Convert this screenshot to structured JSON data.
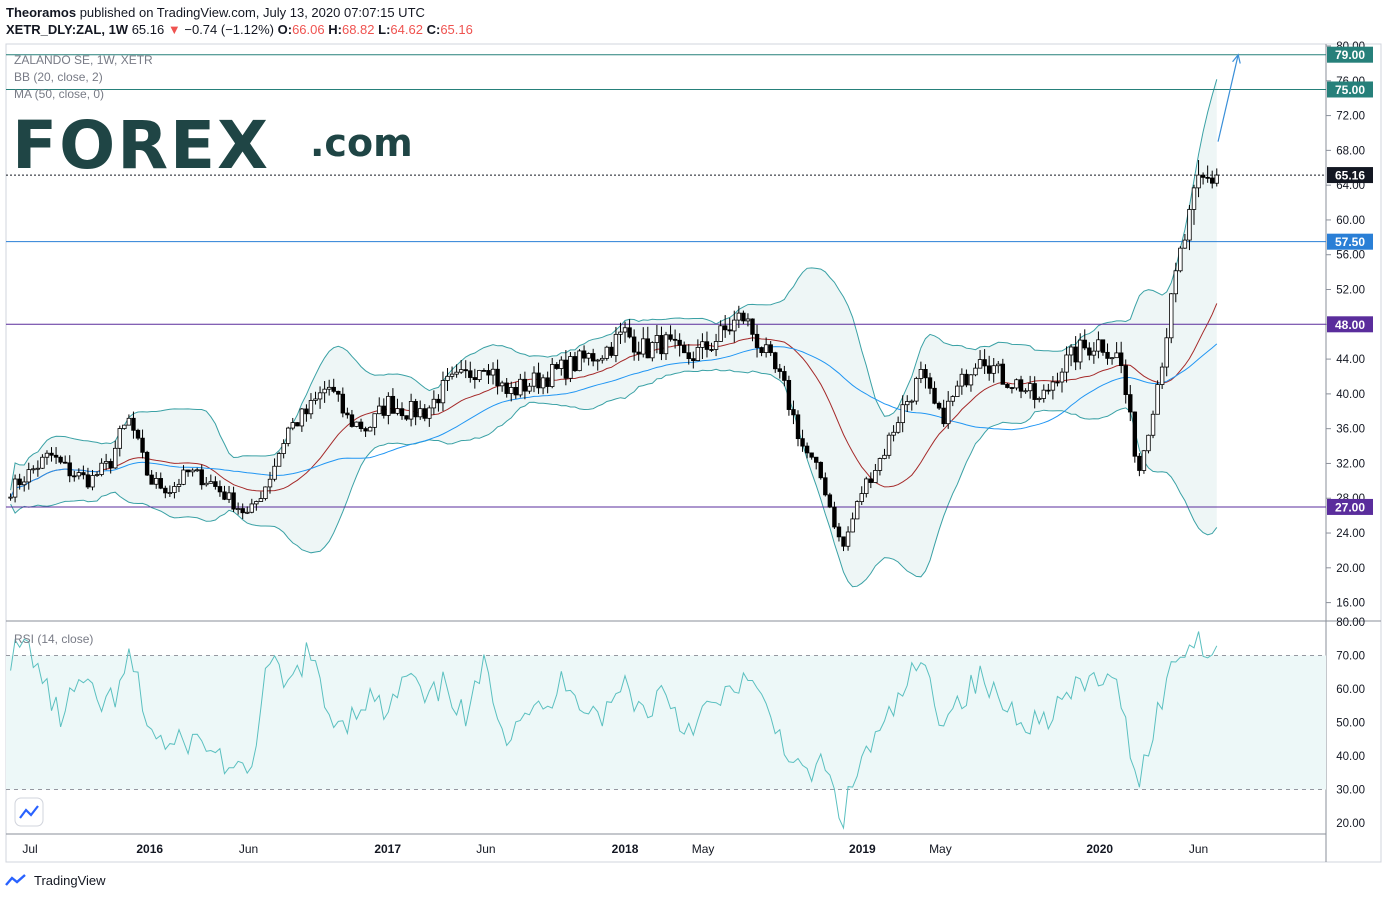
{
  "header": {
    "publisher": "Theoramos",
    "published_line": "published on TradingView.com, July 13, 2020 07:07:15 UTC",
    "symbol": "XETR_DLY:ZAL, 1W",
    "last": "65.16",
    "change": "−0.74 (−1.12%)",
    "open_label": "O:",
    "open": "66.06",
    "high_label": "H:",
    "high": "68.82",
    "low_label": "L:",
    "low": "64.62",
    "close_label": "C:",
    "close": "65.16"
  },
  "legend": {
    "line1": "ZALANDO SE, 1W, XETR",
    "line2": "BB (20, close, 2)",
    "line3": "MA (50, close, 0)"
  },
  "logo": {
    "main": "FOREX",
    "suffix": ".com"
  },
  "rsi_label": "RSI (14, close)",
  "footer": {
    "brand": "TradingView"
  },
  "colors": {
    "up": "#ffffff",
    "down": "#000000",
    "candle_border": "#000000",
    "bb": "#3aa1a5",
    "bb_fill": "#eef6f6",
    "ma": "#2196f3",
    "basis": "#a52a2a",
    "teal_level": "#26807a",
    "blue_level": "#2a7fd6",
    "purple_level": "#5a2d9c",
    "rsi_line": "#5bc0c0",
    "rsi_fill": "#edf8f8",
    "price_tag": "#131722",
    "logo_main": "#1f4545"
  },
  "chart_data": [
    {
      "type": "candlestick",
      "title": "ZALANDO SE, 1W, XETR",
      "x_axis": {
        "type": "date",
        "range": [
          "2015-05-25",
          "2020-12-14"
        ],
        "tick_labels": [
          "Jul",
          "2016",
          "Jun",
          "2017",
          "Jun",
          "2018",
          "May",
          "2019",
          "May",
          "2020",
          "Jun"
        ],
        "tick_dates": [
          "2015-07-01",
          "2016-01-01",
          "2016-06-01",
          "2017-01-01",
          "2017-06-01",
          "2018-01-01",
          "2018-05-01",
          "2019-01-01",
          "2019-05-01",
          "2020-01-01",
          "2020-06-01"
        ]
      },
      "y_axis": {
        "range": [
          14.0,
          80.0
        ],
        "tick_labels": [
          "80.00",
          "76.00",
          "72.00",
          "68.00",
          "64.00",
          "60.00",
          "56.00",
          "52.00",
          "48.00",
          "44.00",
          "40.00",
          "36.00",
          "32.00",
          "28.00",
          "24.00",
          "20.00",
          "16.00"
        ],
        "tick_values": [
          80,
          76,
          72,
          68,
          64,
          60,
          56,
          52,
          48,
          44,
          40,
          36,
          32,
          28,
          24,
          20,
          16
        ]
      },
      "series": [
        {
          "name": "ZALANDO SE",
          "points": [
            [
              "2015-06-01",
              29.0
            ],
            [
              "2015-07-01",
              31.0
            ],
            [
              "2015-08-01",
              33.0
            ],
            [
              "2015-08-15",
              32.0
            ],
            [
              "2015-09-01",
              31.0
            ],
            [
              "2015-10-01",
              30.0
            ],
            [
              "2015-10-15",
              31.0
            ],
            [
              "2015-11-01",
              32.0
            ],
            [
              "2015-11-15",
              35.0
            ],
            [
              "2015-12-01",
              37.0
            ],
            [
              "2016-01-01",
              30.0
            ],
            [
              "2016-02-01",
              29.0
            ],
            [
              "2016-03-01",
              31.0
            ],
            [
              "2016-04-01",
              30.0
            ],
            [
              "2016-05-01",
              28.0
            ],
            [
              "2016-06-01",
              26.0
            ],
            [
              "2016-07-01",
              30.0
            ],
            [
              "2016-08-01",
              36.0
            ],
            [
              "2016-09-01",
              38.0
            ],
            [
              "2016-10-01",
              41.0
            ],
            [
              "2016-11-01",
              37.0
            ],
            [
              "2016-12-01",
              36.0
            ],
            [
              "2017-01-01",
              39.0
            ],
            [
              "2017-02-01",
              38.0
            ],
            [
              "2017-03-01",
              38.0
            ],
            [
              "2017-04-01",
              41.0
            ],
            [
              "2017-05-01",
              42.0
            ],
            [
              "2017-06-01",
              44.0
            ],
            [
              "2017-07-01",
              40.0
            ],
            [
              "2017-08-01",
              41.0
            ],
            [
              "2017-09-01",
              42.0
            ],
            [
              "2017-10-01",
              43.0
            ],
            [
              "2017-11-01",
              44.0
            ],
            [
              "2017-12-01",
              45.0
            ],
            [
              "2018-01-01",
              47.0
            ],
            [
              "2018-02-01",
              45.0
            ],
            [
              "2018-03-01",
              46.0
            ],
            [
              "2018-04-01",
              44.0
            ],
            [
              "2018-05-01",
              45.0
            ],
            [
              "2018-06-01",
              47.0
            ],
            [
              "2018-07-01",
              49.0
            ],
            [
              "2018-08-01",
              45.0
            ],
            [
              "2018-09-01",
              41.0
            ],
            [
              "2018-10-01",
              34.0
            ],
            [
              "2018-11-01",
              30.0
            ],
            [
              "2018-12-01",
              22.0
            ],
            [
              "2019-01-01",
              29.0
            ],
            [
              "2019-02-01",
              33.0
            ],
            [
              "2019-03-01",
              38.0
            ],
            [
              "2019-04-01",
              42.0
            ],
            [
              "2019-05-01",
              37.0
            ],
            [
              "2019-06-01",
              41.0
            ],
            [
              "2019-07-01",
              45.0
            ],
            [
              "2019-08-01",
              42.0
            ],
            [
              "2019-09-01",
              41.0
            ],
            [
              "2019-10-01",
              39.0
            ],
            [
              "2019-11-01",
              43.0
            ],
            [
              "2019-12-01",
              45.0
            ],
            [
              "2020-01-01",
              46.0
            ],
            [
              "2020-02-01",
              44.0
            ],
            [
              "2020-03-01",
              31.0
            ],
            [
              "2020-04-01",
              42.0
            ],
            [
              "2020-05-01",
              55.0
            ],
            [
              "2020-06-01",
              64.0
            ],
            [
              "2020-07-01",
              65.16
            ]
          ]
        }
      ],
      "levels": [
        {
          "label": "79.00",
          "value": 79.0,
          "color": "#26807a"
        },
        {
          "label": "75.00",
          "value": 75.0,
          "color": "#26807a"
        },
        {
          "label": "57.50",
          "value": 57.5,
          "color": "#2a7fd6"
        },
        {
          "label": "48.00",
          "value": 48.0,
          "color": "#5a2d9c"
        },
        {
          "label": "27.00",
          "value": 27.0,
          "color": "#5a2d9c"
        }
      ],
      "last_price": {
        "label": "65.16",
        "value": 65.16
      },
      "indicators": [
        "BB (20, close, 2)",
        "MA (50, close, 0)"
      ],
      "arrow": {
        "from": [
          "2020-07-01",
          69.0
        ],
        "to": [
          "2020-08-01",
          79.0
        ]
      },
      "grid": false
    },
    {
      "type": "line",
      "title": "RSI (14, close)",
      "y_axis": {
        "range": [
          17.0,
          80.0
        ],
        "tick_labels": [
          "80.00",
          "70.00",
          "60.00",
          "50.00",
          "40.00",
          "30.00",
          "20.00"
        ],
        "tick_values": [
          80,
          70,
          60,
          50,
          40,
          30,
          20
        ]
      },
      "bands": [
        70,
        30
      ],
      "series": [
        {
          "name": "RSI (14, close)",
          "points": [
            [
              "2015-06-01",
              70
            ],
            [
              "2015-07-01",
              73
            ],
            [
              "2015-07-15",
              65
            ],
            [
              "2015-08-15",
              51
            ],
            [
              "2015-09-15",
              62
            ],
            [
              "2015-10-15",
              55
            ],
            [
              "2015-11-15",
              58
            ],
            [
              "2015-12-01",
              70
            ],
            [
              "2016-01-01",
              48
            ],
            [
              "2016-02-01",
              42
            ],
            [
              "2016-03-01",
              45
            ],
            [
              "2016-04-01",
              43
            ],
            [
              "2016-05-01",
              37
            ],
            [
              "2016-06-01",
              32
            ],
            [
              "2016-07-01",
              68
            ],
            [
              "2016-08-01",
              60
            ],
            [
              "2016-09-01",
              72
            ],
            [
              "2016-10-01",
              52
            ],
            [
              "2016-11-01",
              51
            ],
            [
              "2016-12-01",
              58
            ],
            [
              "2017-01-01",
              52
            ],
            [
              "2017-02-01",
              65
            ],
            [
              "2017-03-01",
              55
            ],
            [
              "2017-04-01",
              62
            ],
            [
              "2017-05-01",
              50
            ],
            [
              "2017-06-01",
              68
            ],
            [
              "2017-07-01",
              46
            ],
            [
              "2017-08-01",
              55
            ],
            [
              "2017-09-01",
              52
            ],
            [
              "2017-10-01",
              64
            ],
            [
              "2017-11-01",
              55
            ],
            [
              "2017-12-01",
              52
            ],
            [
              "2018-01-01",
              62
            ],
            [
              "2018-02-01",
              52
            ],
            [
              "2018-03-01",
              61
            ],
            [
              "2018-04-01",
              48
            ],
            [
              "2018-05-01",
              53
            ],
            [
              "2018-06-01",
              56
            ],
            [
              "2018-07-01",
              64
            ],
            [
              "2018-08-01",
              55
            ],
            [
              "2018-09-01",
              45
            ],
            [
              "2018-10-01",
              33
            ],
            [
              "2018-11-01",
              38
            ],
            [
              "2018-12-01",
              21
            ],
            [
              "2019-01-01",
              40
            ],
            [
              "2019-02-01",
              47
            ],
            [
              "2019-03-01",
              58
            ],
            [
              "2019-04-01",
              68
            ],
            [
              "2019-05-01",
              52
            ],
            [
              "2019-06-01",
              57
            ],
            [
              "2019-07-01",
              63
            ],
            [
              "2019-08-01",
              56
            ],
            [
              "2019-09-01",
              52
            ],
            [
              "2019-10-01",
              50
            ],
            [
              "2019-11-01",
              56
            ],
            [
              "2019-12-01",
              60
            ],
            [
              "2020-01-01",
              64
            ],
            [
              "2020-02-01",
              58
            ],
            [
              "2020-03-01",
              32
            ],
            [
              "2020-04-01",
              55
            ],
            [
              "2020-05-01",
              71
            ],
            [
              "2020-06-01",
              75
            ],
            [
              "2020-07-01",
              71
            ]
          ]
        }
      ]
    }
  ]
}
